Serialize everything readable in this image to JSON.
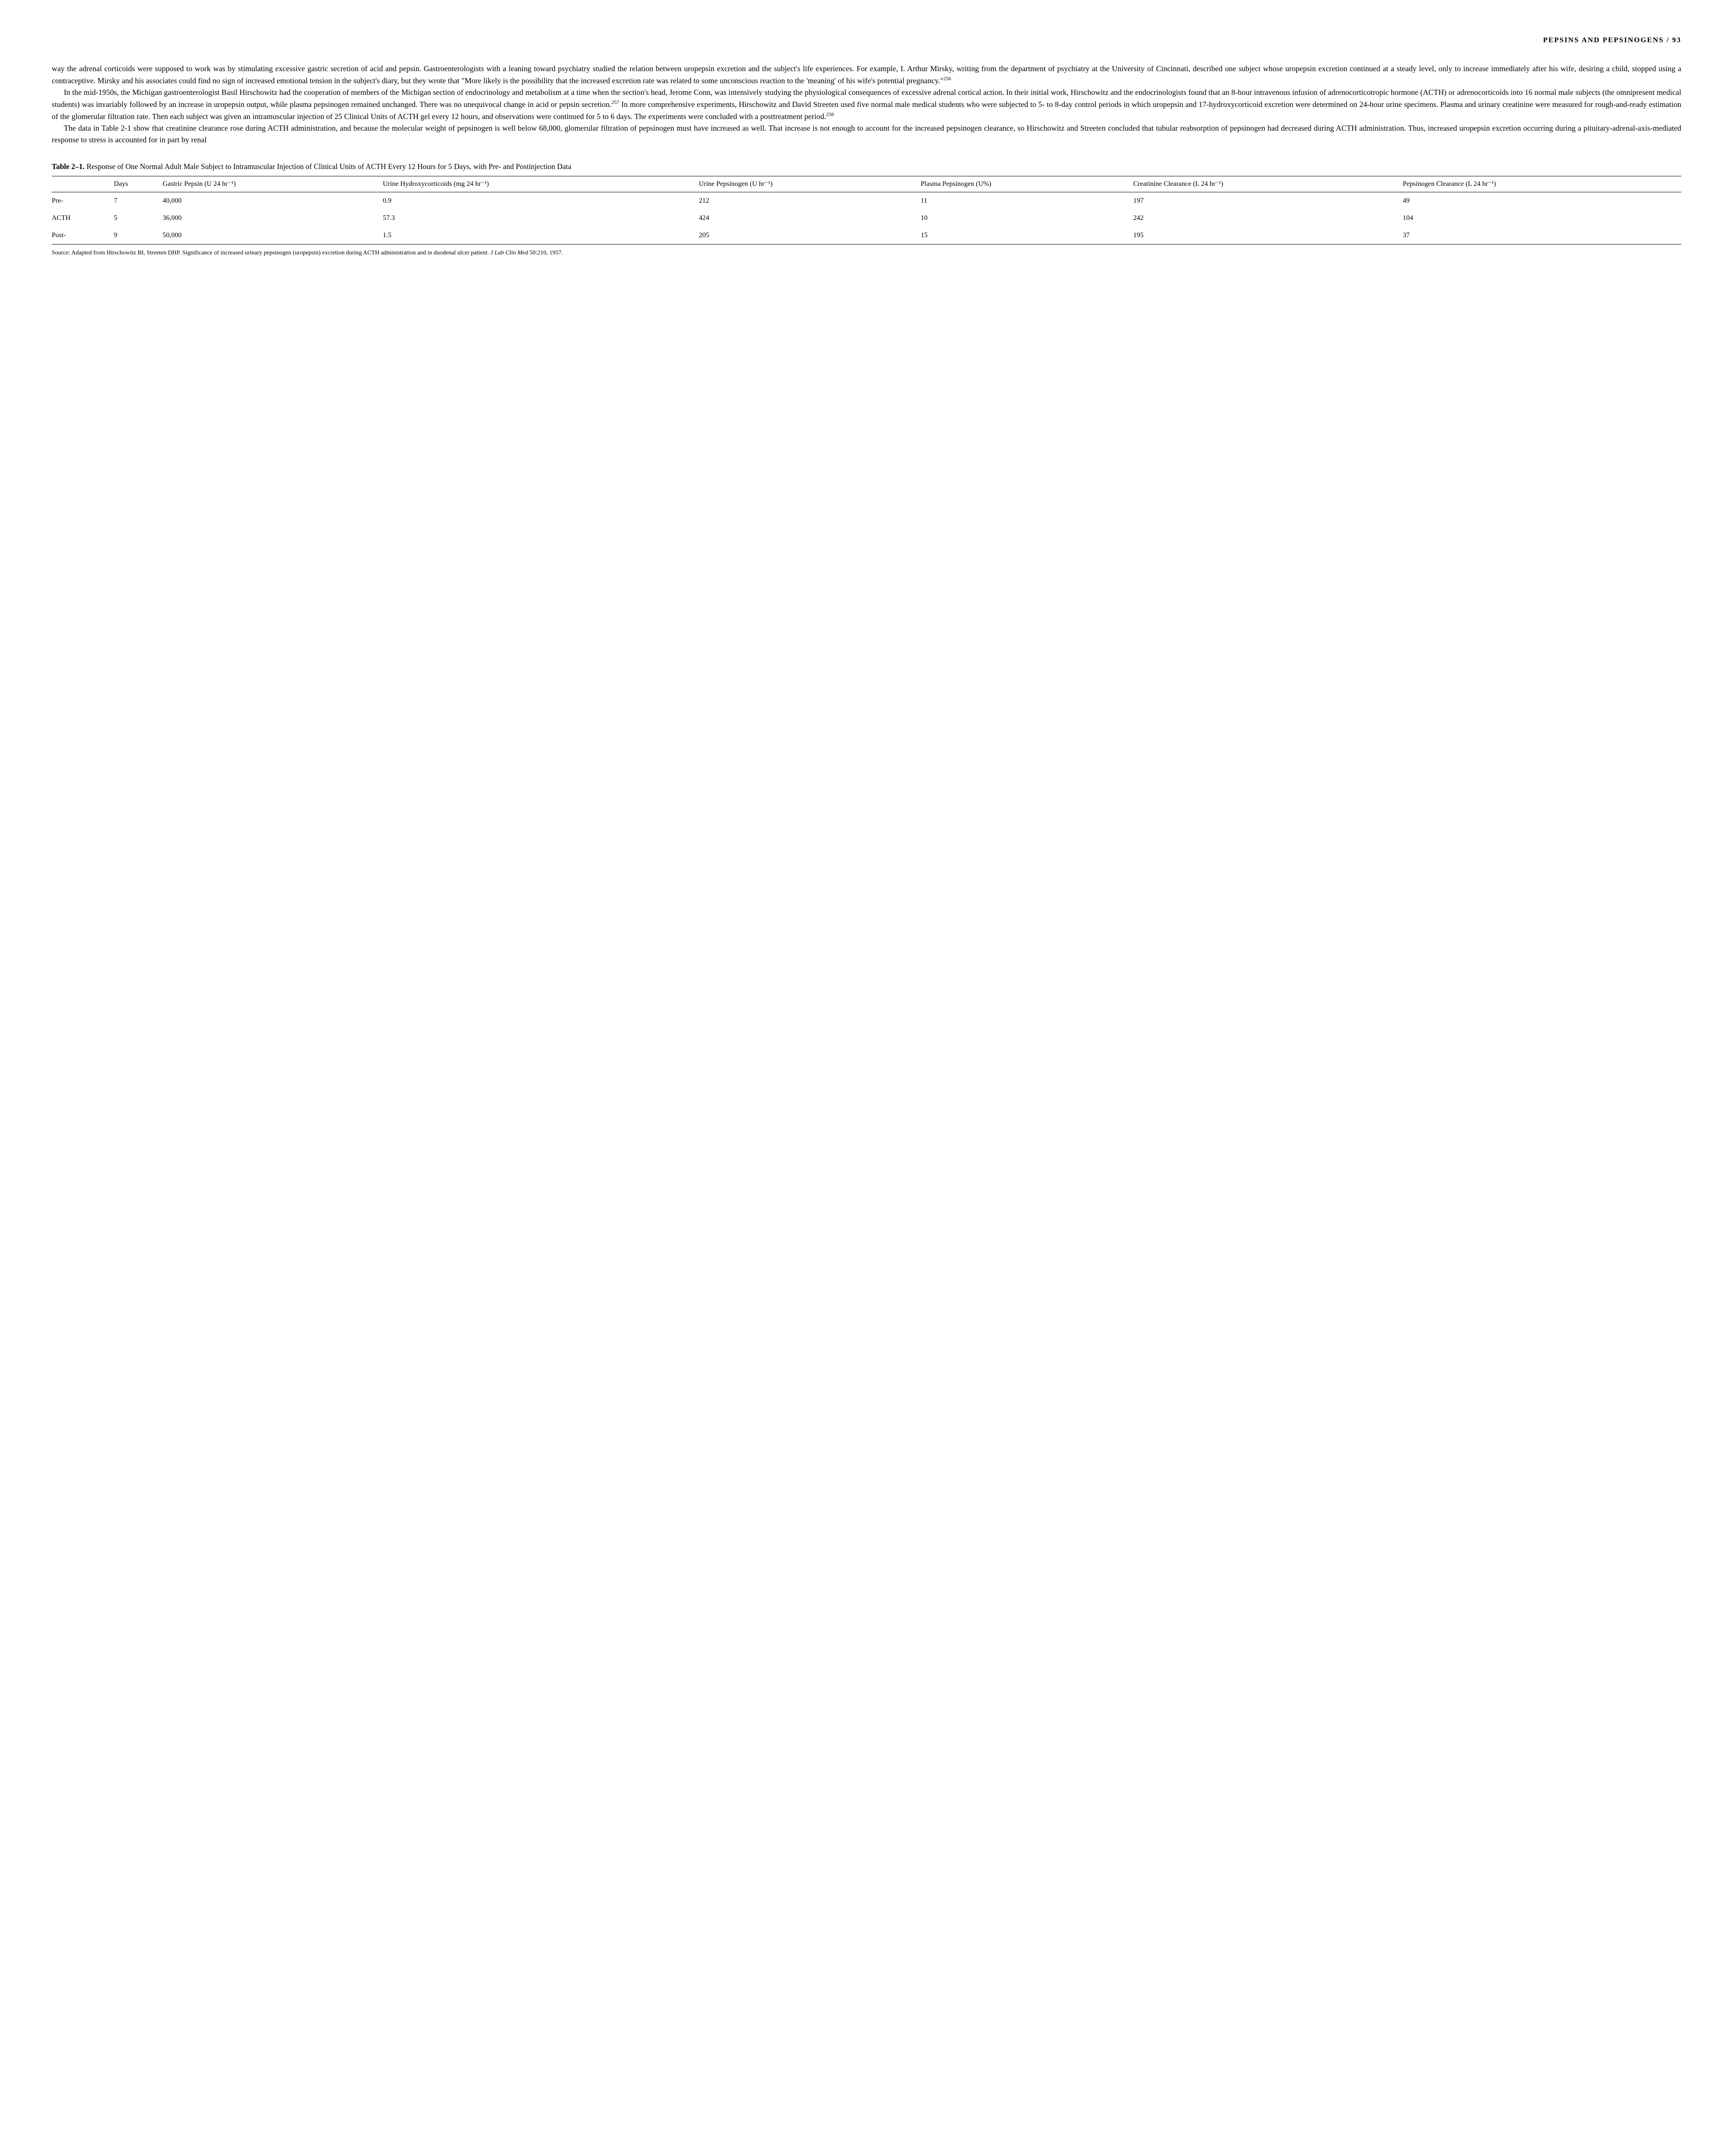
{
  "header": {
    "running_title": "PEPSINS AND PEPSINOGENS",
    "separator": " / ",
    "page_number": "93"
  },
  "paragraphs": [
    {
      "text": "way the adrenal corticoids were supposed to work was by stimulating excessive gastric secretion of acid and pepsin. Gastroenterologists with a leaning toward psychiatry studied the relation between uropepsin excretion and the subject's life experiences. For example, I. Arthur Mirsky, writing from the department of psychiatry at the University of Cincinnati, described one subject whose uropepsin excretion continued at a steady level, only to increase immediately after his wife, desiring a child, stopped using a contraceptive. Mirsky and his associates could find no sign of increased emotional tension in the subject's diary, but they wrote that \"More likely is the possibility that the increased excretion rate was related to some unconscious reaction to the 'meaning' of his wife's potential pregnancy.\"",
      "sup": "256",
      "first": true
    },
    {
      "text": "In the mid-1950s, the Michigan gastroenterologist Basil Hirschowitz had the cooperation of members of the Michigan section of endocrinology and metabolism at a time when the section's head, Jerome Conn, was intensively studying the physiological consequences of excessive adrenal cortical action. In their initial work, Hirschowitz and the endocrinologists found that an 8-hour intravenous infusion of adrenocorticotropic hormone (ACTH) or adrenocorticoids into 16 normal male subjects (the omnipresent medical students) was invariably followed by an increase in uropepsin output, while plasma pepsinogen remained unchanged. There was no unequivocal change in acid or pepsin secretion.",
      "sup": "257",
      "text2": " In more comprehensive experiments, Hirschowitz and David Streeten used five normal male medical students who were subjected to 5- to 8-day control periods in which uropepsin and 17-hydroxycorticoid excretion were determined on 24-hour urine specimens. Plasma and urinary creatinine were measured for rough-and-ready estimation of the glomerular filtration rate. Then each subject was given an intramuscular injection of 25 Clinical Units of ACTH gel every 12 hours, and observations were continued for 5 to 6 days. The experiments were concluded with a posttreatment period.",
      "sup2": "258"
    },
    {
      "text": "The data in Table 2-1 show that creatinine clearance rose during ACTH administration, and because the molecular weight of pepsinogen is well below 68,000, glomerular filtration of pepsinogen must have increased as well. That increase is not enough to account for the increased pepsinogen clearance, so Hirschowitz and Streeten concluded that tubular reabsorption of pepsinogen had decreased during ACTH administration. Thus, increased uropepsin excretion occurring during a pituitary-adrenal-axis-mediated response to stress is accounted for in part by renal"
    }
  ],
  "table": {
    "title_bold": "Table 2–1.",
    "title_rest": "Response of One Normal Adult Male Subject to Intramuscular Injection of Clinical Units of ACTH Every 12 Hours for 5 Days, with Pre- and Postinjection Data",
    "columns": [
      "",
      "Days",
      "Gastric Pepsin (U 24 hr⁻¹)",
      "Urine Hydroxycorticoids (mg 24 hr⁻¹)",
      "Urine Pepsinogen (U hr⁻¹)",
      "Plasma Pepsinogen (U%)",
      "Creatinine Clearance (L 24 hr⁻¹)",
      "Pepsinogen Clearance (L 24 hr⁻¹)"
    ],
    "rows": [
      [
        "Pre-",
        "7",
        "40,000",
        "0.9",
        "212",
        "11",
        "197",
        "49"
      ],
      [
        "ACTH",
        "5",
        "36,000",
        "57.3",
        "424",
        "10",
        "242",
        "104"
      ],
      [
        "Post-",
        "9",
        "50,000",
        "1.5",
        "205",
        "15",
        "195",
        "37"
      ]
    ],
    "source_prefix": "Source: Adapted from Hirschowitz BI, Streeten DHP. Significance of increased urinary pepsinogen (uropepsin) excretion during ACTH administration and in duodenal ulcer patient. ",
    "source_italic": "J Lab Clin Med",
    "source_suffix": " 50:210, 1957."
  }
}
